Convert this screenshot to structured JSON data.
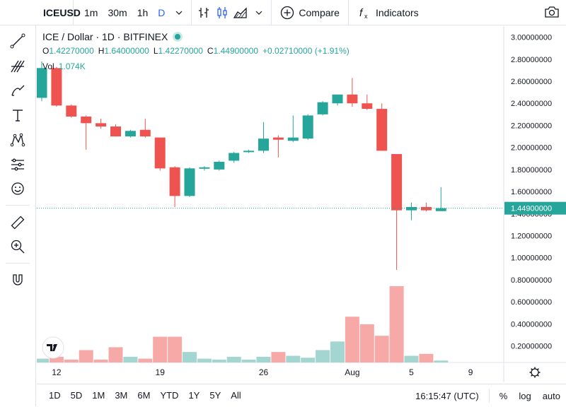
{
  "toolbar": {
    "symbol": "ICEUSD",
    "timeframes": [
      "1m",
      "30m",
      "1h",
      "D"
    ],
    "active_timeframe": "D",
    "compare_label": "Compare",
    "indicators_label": "Indicators"
  },
  "legend": {
    "title": "ICE / Dollar · 1D · BITFINEX",
    "open_label": "O",
    "open": "1.42270000",
    "high_label": "H",
    "high": "1.64000000",
    "low_label": "L",
    "low": "1.42270000",
    "close_label": "C",
    "close": "1.44900000",
    "change": "+0.02710000 (+1.91%)",
    "vol_label": "Vol",
    "vol": "1.074K"
  },
  "bottom": {
    "ranges": [
      "1D",
      "5D",
      "1M",
      "3M",
      "6M",
      "YTD",
      "1Y",
      "5Y",
      "All"
    ],
    "time": "16:15:47 (UTC)",
    "percent_label": "%",
    "log_label": "log",
    "auto_label": "auto"
  },
  "colors": {
    "up": "#26a69a",
    "down": "#ef5350",
    "up_vol": "#a3d6d1",
    "down_vol": "#f7a9a7",
    "accent": "#2962ff"
  },
  "chart_data": {
    "type": "candlestick",
    "price_axis_ticks": [
      "3.00000000",
      "2.80000000",
      "2.60000000",
      "2.40000000",
      "2.20000000",
      "2.00000000",
      "1.80000000",
      "1.60000000",
      "1.40000000",
      "1.20000000",
      "1.00000000",
      "0.80000000",
      "0.60000000",
      "0.40000000",
      "0.20000000"
    ],
    "price_range": [
      0.05,
      3.1
    ],
    "volume_max": 1.0,
    "last_price_label": "1.44900000",
    "time_axis_labels": [
      {
        "label": "12",
        "index": 1
      },
      {
        "label": "19",
        "index": 8
      },
      {
        "label": "26",
        "index": 15
      },
      {
        "label": "Aug",
        "index": 21
      },
      {
        "label": "5",
        "index": 25
      },
      {
        "label": "9",
        "index": 29
      }
    ],
    "candles": [
      {
        "o": 2.45,
        "h": 2.78,
        "l": 2.42,
        "c": 2.72,
        "v": 0.04
      },
      {
        "o": 2.72,
        "h": 2.73,
        "l": 2.37,
        "c": 2.38,
        "v": 0.06
      },
      {
        "o": 2.38,
        "h": 2.39,
        "l": 2.27,
        "c": 2.28,
        "v": 0.03
      },
      {
        "o": 2.28,
        "h": 2.29,
        "l": 1.98,
        "c": 2.22,
        "v": 0.13
      },
      {
        "o": 2.22,
        "h": 2.26,
        "l": 2.17,
        "c": 2.19,
        "v": 0.03
      },
      {
        "o": 2.19,
        "h": 2.21,
        "l": 2.1,
        "c": 2.1,
        "v": 0.16
      },
      {
        "o": 2.1,
        "h": 2.16,
        "l": 2.09,
        "c": 2.15,
        "v": 0.06
      },
      {
        "o": 2.16,
        "h": 2.26,
        "l": 2.09,
        "c": 2.1,
        "v": 0.04
      },
      {
        "o": 2.09,
        "h": 2.09,
        "l": 1.79,
        "c": 1.81,
        "v": 0.27
      },
      {
        "o": 1.82,
        "h": 1.83,
        "l": 1.46,
        "c": 1.56,
        "v": 0.27
      },
      {
        "o": 1.56,
        "h": 1.82,
        "l": 1.55,
        "c": 1.81,
        "v": 0.11
      },
      {
        "o": 1.81,
        "h": 1.83,
        "l": 1.79,
        "c": 1.82,
        "v": 0.04
      },
      {
        "o": 1.8,
        "h": 1.88,
        "l": 1.79,
        "c": 1.87,
        "v": 0.03
      },
      {
        "o": 1.88,
        "h": 1.96,
        "l": 1.86,
        "c": 1.95,
        "v": 0.06
      },
      {
        "o": 1.96,
        "h": 1.98,
        "l": 1.95,
        "c": 1.97,
        "v": 0.03
      },
      {
        "o": 1.97,
        "h": 2.23,
        "l": 1.95,
        "c": 2.08,
        "v": 0.06
      },
      {
        "o": 2.09,
        "h": 2.11,
        "l": 1.91,
        "c": 2.07,
        "v": 0.11
      },
      {
        "o": 2.06,
        "h": 2.29,
        "l": 2.05,
        "c": 2.09,
        "v": 0.07
      },
      {
        "o": 2.08,
        "h": 2.3,
        "l": 2.07,
        "c": 2.29,
        "v": 0.05
      },
      {
        "o": 2.3,
        "h": 2.42,
        "l": 2.29,
        "c": 2.41,
        "v": 0.13
      },
      {
        "o": 2.4,
        "h": 2.48,
        "l": 2.38,
        "c": 2.48,
        "v": 0.22
      },
      {
        "o": 2.48,
        "h": 2.63,
        "l": 2.37,
        "c": 2.4,
        "v": 0.48
      },
      {
        "o": 2.4,
        "h": 2.48,
        "l": 2.34,
        "c": 2.35,
        "v": 0.4
      },
      {
        "o": 2.35,
        "h": 2.4,
        "l": 1.97,
        "c": 1.97,
        "v": 0.28
      },
      {
        "o": 1.94,
        "h": 1.94,
        "l": 0.89,
        "c": 1.43,
        "v": 0.8
      },
      {
        "o": 1.43,
        "h": 1.5,
        "l": 1.34,
        "c": 1.46,
        "v": 0.07
      },
      {
        "o": 1.46,
        "h": 1.5,
        "l": 1.42,
        "c": 1.43,
        "v": 0.09
      },
      {
        "o": 1.4227,
        "h": 1.64,
        "l": 1.4227,
        "c": 1.449,
        "v": 0.02
      }
    ]
  }
}
